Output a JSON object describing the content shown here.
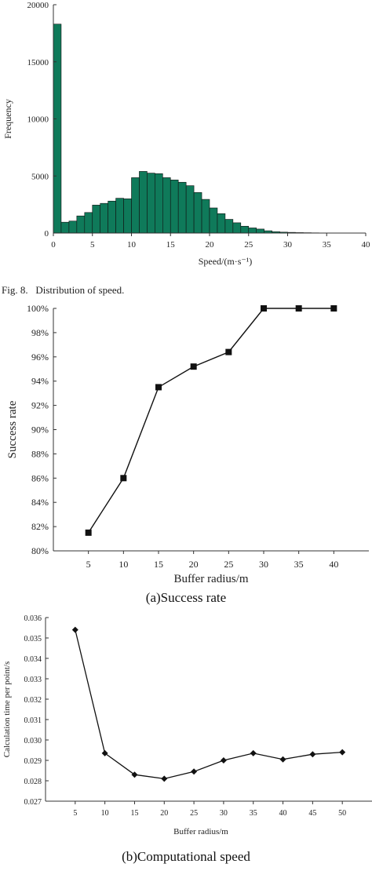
{
  "chart_data": [
    {
      "type": "bar",
      "xlabel": "Speed/(m·s⁻¹)",
      "ylabel": "Frequency",
      "xlim": [
        0,
        40
      ],
      "ylim": [
        0,
        20000
      ],
      "xticks": [
        0,
        5,
        10,
        15,
        20,
        25,
        30,
        35,
        40
      ],
      "yticks": [
        0,
        5000,
        10000,
        15000,
        20000
      ],
      "bin_width": 1,
      "bin_starts": [
        0,
        1,
        2,
        3,
        4,
        5,
        6,
        7,
        8,
        9,
        10,
        11,
        12,
        13,
        14,
        15,
        16,
        17,
        18,
        19,
        20,
        21,
        22,
        23,
        24,
        25,
        26,
        27,
        28,
        29,
        30,
        31,
        32,
        33,
        34,
        35,
        36,
        37,
        38,
        39
      ],
      "values": [
        18300,
        950,
        1050,
        1500,
        1800,
        2450,
        2600,
        2800,
        3050,
        3000,
        4850,
        5400,
        5250,
        5200,
        4850,
        4650,
        4450,
        4150,
        3550,
        2950,
        2200,
        1700,
        1200,
        900,
        600,
        450,
        350,
        200,
        120,
        80,
        60,
        40,
        30,
        20,
        10,
        5,
        5,
        5,
        0,
        0
      ],
      "color": "#0f7a5a",
      "grid": false
    },
    {
      "type": "line",
      "xlabel": "Buffer radius/m",
      "ylabel": "Success rate",
      "x": [
        5,
        10,
        15,
        20,
        25,
        30,
        35,
        40
      ],
      "values": [
        81.5,
        86.0,
        93.5,
        95.2,
        96.4,
        100.0,
        100.0,
        100.0
      ],
      "xticks": [
        5,
        10,
        15,
        20,
        25,
        30,
        35,
        40
      ],
      "yticks": [
        80,
        82,
        84,
        86,
        88,
        90,
        92,
        94,
        96,
        98,
        100
      ],
      "xlim": [
        0,
        45
      ],
      "ylim": [
        80,
        100
      ],
      "y_suffix": "%",
      "marker": "square",
      "grid": false
    },
    {
      "type": "line",
      "xlabel": "Buffer radius/m",
      "ylabel": "Calculation time per point/s",
      "x": [
        5,
        10,
        15,
        20,
        25,
        30,
        35,
        40,
        45,
        50
      ],
      "values": [
        0.0354,
        0.02935,
        0.0283,
        0.0281,
        0.02845,
        0.029,
        0.02935,
        0.02905,
        0.0293,
        0.0294
      ],
      "xticks": [
        5,
        10,
        15,
        20,
        25,
        30,
        35,
        40,
        45,
        50
      ],
      "yticks": [
        0.027,
        0.028,
        0.029,
        0.03,
        0.031,
        0.032,
        0.033,
        0.034,
        0.035,
        0.036
      ],
      "xlim": [
        0,
        55
      ],
      "ylim": [
        0.027,
        0.036
      ],
      "marker": "diamond",
      "grid": false
    }
  ],
  "captions": {
    "fig8": "Fig. 8.   Distribution of speed.",
    "sub_a": "(a)Success rate",
    "sub_b": "(b)Computational speed"
  }
}
